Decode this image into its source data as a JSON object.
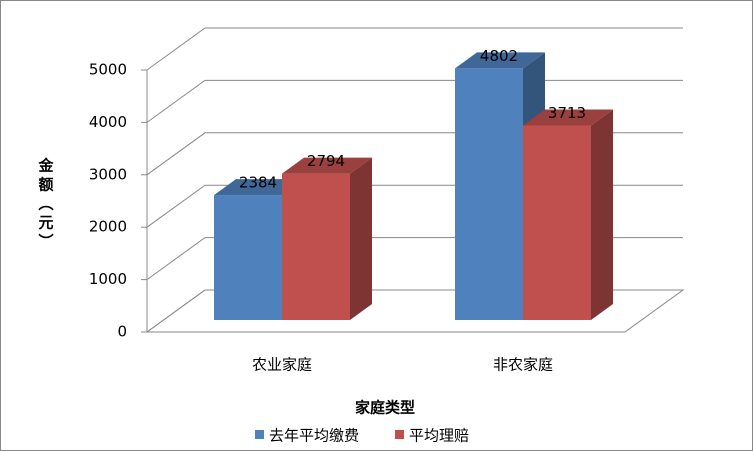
{
  "chart_data": {
    "type": "bar3d",
    "x_label": "家庭类型",
    "y_label": "金额（元）",
    "categories": [
      "农业家庭",
      "非农家庭"
    ],
    "series": [
      {
        "name": "去年平均缴费",
        "color": "#4f81bd",
        "values": [
          2384,
          4802
        ]
      },
      {
        "name": "平均理赔",
        "color": "#c0504d",
        "values": [
          2794,
          3713
        ]
      }
    ],
    "ylim": [
      0,
      5000
    ],
    "yticks": [
      0,
      1000,
      2000,
      3000,
      4000,
      5000
    ],
    "grid": true,
    "legend": "bottom"
  }
}
